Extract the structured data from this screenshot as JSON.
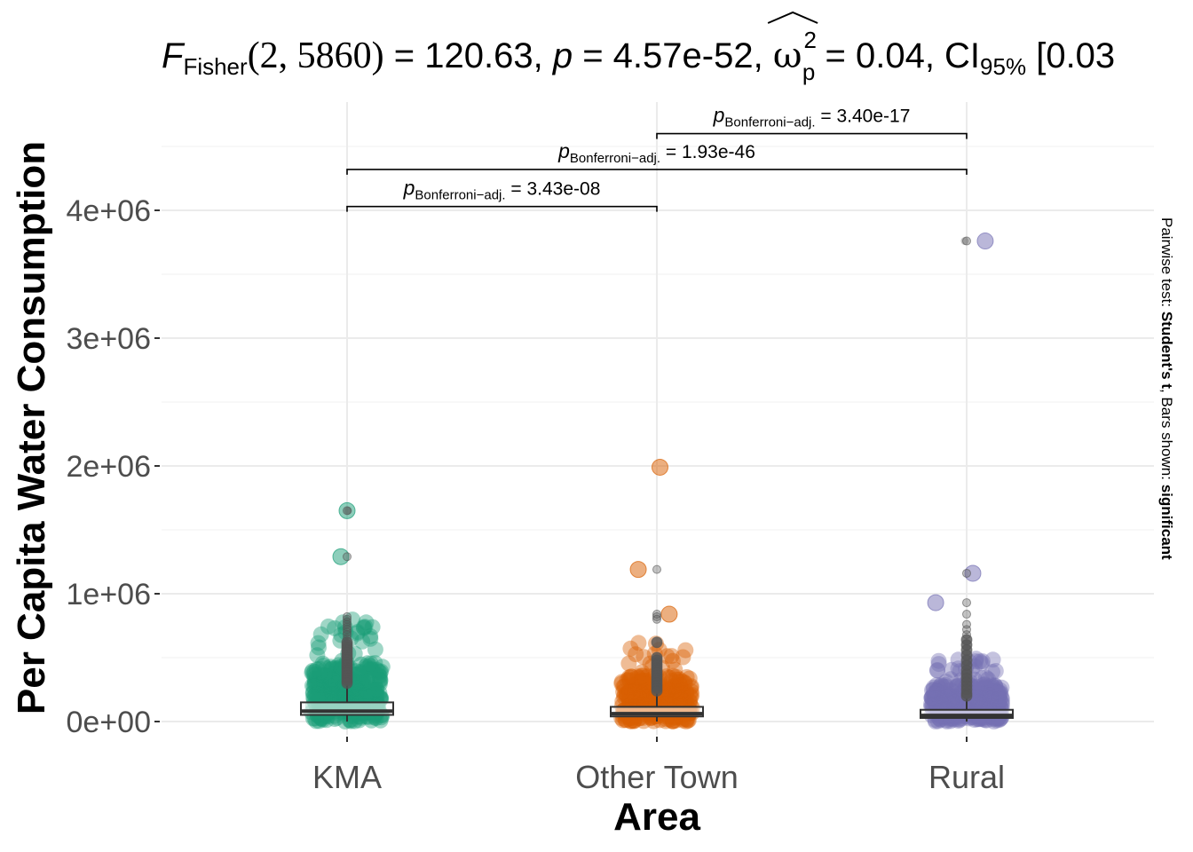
{
  "chart_data": {
    "type": "scatter",
    "subtype": "boxviolin-jitter",
    "title": {
      "f_symbol": "F",
      "f_sub": "Fisher",
      "f_args": "(2, 5860)",
      "f_value": "= 120.63,",
      "p_symbol": "p",
      "p_value": "= 4.57e-52,",
      "omega_symbol": "ω",
      "omega_sup": "2",
      "omega_sub": "p",
      "omega_value": "= 0.04,",
      "ci_symbol": "CI",
      "ci_sub": "95%",
      "ci_value": "[0.03"
    },
    "xlabel": "Area",
    "ylabel": "Per Capita Water Consumption",
    "categories": [
      "KMA",
      "Other Town",
      "Rural"
    ],
    "ylim": [
      -120000,
      4600000
    ],
    "yticks": [
      0,
      1000000,
      2000000,
      3000000,
      4000000
    ],
    "ytick_labels": [
      "0e+00",
      "1e+06",
      "2e+06",
      "3e+06",
      "4e+06"
    ],
    "grid": true,
    "colors": {
      "KMA": "#1b9e77",
      "Other Town": "#d95f02",
      "Rural": "#7570b3",
      "box": "#333333",
      "outlier": "#555555",
      "grid": "#ebebeb"
    },
    "boxes": [
      {
        "category": "KMA",
        "q1": 52000,
        "median": 82000,
        "q3": 150000,
        "whisker_high": 290000,
        "whisker_low": 0
      },
      {
        "category": "Other Town",
        "q1": 40000,
        "median": 62000,
        "q3": 115000,
        "whisker_high": 225000,
        "whisker_low": 0
      },
      {
        "category": "Rural",
        "q1": 28000,
        "median": 48000,
        "q3": 92000,
        "whisker_high": 180000,
        "whisker_low": 0
      }
    ],
    "outliers": [
      {
        "category": "KMA",
        "values": [
          1290000,
          1650000,
          820000,
          800000,
          780000,
          760000,
          740000,
          720000,
          700000,
          680000,
          650000,
          620000,
          600000,
          580000,
          560000,
          540000,
          520000,
          500000,
          480000,
          460000,
          440000,
          420000,
          400000,
          380000,
          360000,
          340000,
          320000,
          300000
        ]
      },
      {
        "category": "Other Town",
        "values": [
          1190000,
          840000,
          820000,
          800000,
          620000,
          500000,
          480000,
          460000,
          440000,
          420000,
          400000,
          380000,
          360000,
          340000,
          320000,
          300000,
          280000,
          260000,
          240000
        ]
      },
      {
        "category": "Rural",
        "values": [
          3760000,
          1160000,
          930000,
          840000,
          760000,
          720000,
          680000,
          640000,
          600000,
          560000,
          520000,
          480000,
          440000,
          400000,
          370000,
          340000,
          310000,
          280000,
          250000,
          220000,
          200000
        ]
      }
    ],
    "highlight_points": [
      {
        "category": "KMA",
        "value": 1650000,
        "offset": 0.0
      },
      {
        "category": "KMA",
        "value": 1290000,
        "offset": -0.02
      },
      {
        "category": "Other Town",
        "value": 1990000,
        "offset": 0.01
      },
      {
        "category": "Other Town",
        "value": 1190000,
        "offset": -0.06
      },
      {
        "category": "Other Town",
        "value": 840000,
        "offset": 0.04
      },
      {
        "category": "Rural",
        "value": 3760000,
        "offset": 0.06
      },
      {
        "category": "Rural",
        "value": 1160000,
        "offset": 0.02
      },
      {
        "category": "Rural",
        "value": 930000,
        "offset": -0.1
      }
    ],
    "comparisons": [
      {
        "from": "KMA",
        "to": "Other Town",
        "label_sym": "p",
        "label_sub": "Bonferroni−adj.",
        "label_val": "= 3.43e-08",
        "y": 4030000
      },
      {
        "from": "KMA",
        "to": "Rural",
        "label_sym": "p",
        "label_sub": "Bonferroni−adj.",
        "label_val": "= 1.93e-46",
        "y": 4320000
      },
      {
        "from": "Other Town",
        "to": "Rural",
        "label_sym": "p",
        "label_sub": "Bonferroni−adj.",
        "label_val": "= 3.40e-17",
        "y": 4600000
      }
    ],
    "caption": {
      "prefix": "Pairwise test: ",
      "test": "Student's t",
      "middle": ", Bars shown: ",
      "shown": "significant"
    }
  }
}
